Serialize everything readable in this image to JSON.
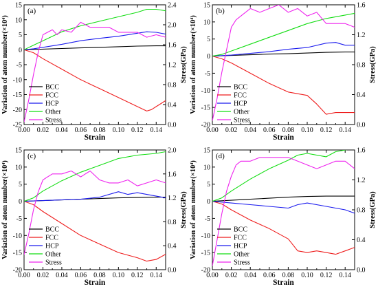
{
  "colors": {
    "BCC": "#000000",
    "FCC": "#ee1c1c",
    "HCP": "#1a1aee",
    "Other": "#11dd11",
    "Stress": "#ee22ee"
  },
  "chart_data": [
    {
      "panel": "(a)",
      "type": "line",
      "xlabel": "Strain",
      "ylabel": "Variation of atom number(×10⁴)",
      "y2label": "Stress(GPa)",
      "xlim": [
        0,
        0.15
      ],
      "ylim": [
        -25,
        15
      ],
      "y2lim": [
        0,
        2.4
      ],
      "xticks": [
        "0.00",
        "0.02",
        "0.04",
        "0.06",
        "0.08",
        "0.10",
        "0.12",
        "0.14"
      ],
      "yticks": [
        "-25",
        "-20",
        "-15",
        "-10",
        "-5",
        "0",
        "5",
        "10",
        "15"
      ],
      "y2ticks": [
        "0.0",
        "0.4",
        "0.8",
        "1.2",
        "1.6",
        "2.0",
        "2.4"
      ],
      "legend": [
        "BCC",
        "FCC",
        "HCP",
        "Other",
        "Stress"
      ],
      "series": [
        {
          "name": "BCC",
          "axis": "left",
          "x": [
            0,
            0.02,
            0.04,
            0.06,
            0.08,
            0.1,
            0.12,
            0.14,
            0.15
          ],
          "y": [
            0,
            0.2,
            0.4,
            0.6,
            0.8,
            1.0,
            1.2,
            1.3,
            1.3
          ]
        },
        {
          "name": "FCC",
          "axis": "left",
          "x": [
            0,
            0.01,
            0.02,
            0.04,
            0.06,
            0.08,
            0.1,
            0.12,
            0.13,
            0.135,
            0.14,
            0.145,
            0.15
          ],
          "y": [
            0,
            -1,
            -3,
            -6.5,
            -10,
            -13,
            -16,
            -19,
            -20.5,
            -20,
            -19,
            -18,
            -17
          ]
        },
        {
          "name": "HCP",
          "axis": "left",
          "x": [
            0,
            0.01,
            0.02,
            0.04,
            0.06,
            0.08,
            0.1,
            0.12,
            0.13,
            0.14,
            0.15
          ],
          "y": [
            0,
            0.3,
            0.8,
            1.8,
            3,
            3.8,
            4.5,
            5.5,
            6,
            5.8,
            5.2
          ]
        },
        {
          "name": "Other",
          "axis": "left",
          "x": [
            0,
            0.01,
            0.02,
            0.04,
            0.06,
            0.08,
            0.1,
            0.12,
            0.13,
            0.14,
            0.15
          ],
          "y": [
            0,
            1.5,
            3,
            6,
            8,
            9.5,
            11,
            12.5,
            13.5,
            13.5,
            13
          ]
        },
        {
          "name": "Stress",
          "axis": "right",
          "x": [
            0,
            0.005,
            0.01,
            0.015,
            0.02,
            0.025,
            0.03,
            0.035,
            0.04,
            0.05,
            0.06,
            0.07,
            0.08,
            0.09,
            0.1,
            0.11,
            0.12,
            0.13,
            0.14,
            0.15
          ],
          "y": [
            0.05,
            0.5,
            1.0,
            1.45,
            1.8,
            1.85,
            1.9,
            1.8,
            1.9,
            1.85,
            2.05,
            1.95,
            1.95,
            1.95,
            1.85,
            1.85,
            1.85,
            1.75,
            1.8,
            1.75
          ]
        }
      ]
    },
    {
      "panel": "(b)",
      "type": "line",
      "xlabel": "Strain",
      "ylabel": "Variation of atom number(×10⁴)",
      "y2label": "Stress(GPa)",
      "xlim": [
        0,
        0.15
      ],
      "ylim": [
        -20,
        15
      ],
      "y2lim": [
        0,
        1.6
      ],
      "xticks": [
        "0.00",
        "0.02",
        "0.04",
        "0.06",
        "0.08",
        "0.10",
        "0.12",
        "0.14"
      ],
      "yticks": [
        "-20",
        "-15",
        "-10",
        "-5",
        "0",
        "5",
        "10",
        "15"
      ],
      "y2ticks": [
        "0.0",
        "0.4",
        "0.8",
        "1.2",
        "1.6"
      ],
      "legend": [
        "BCC",
        "FCC",
        "HCP",
        "Other",
        "Stress"
      ],
      "series": [
        {
          "name": "BCC",
          "axis": "left",
          "x": [
            0,
            0.02,
            0.04,
            0.06,
            0.08,
            0.1,
            0.12,
            0.14,
            0.15
          ],
          "y": [
            0,
            0.2,
            0.4,
            0.6,
            0.7,
            0.9,
            1.1,
            1.2,
            1.2
          ]
        },
        {
          "name": "FCC",
          "axis": "left",
          "x": [
            0,
            0.01,
            0.02,
            0.04,
            0.06,
            0.08,
            0.1,
            0.11,
            0.12,
            0.13,
            0.14,
            0.15
          ],
          "y": [
            0,
            -0.8,
            -2,
            -5,
            -8,
            -10.5,
            -11.5,
            -14,
            -17,
            -16.5,
            -16.5,
            -16.5
          ]
        },
        {
          "name": "HCP",
          "axis": "left",
          "x": [
            0,
            0.02,
            0.04,
            0.06,
            0.08,
            0.1,
            0.12,
            0.13,
            0.14,
            0.15
          ],
          "y": [
            0,
            0.3,
            0.8,
            1.3,
            2,
            2.5,
            3.8,
            4,
            3.2,
            3.2
          ]
        },
        {
          "name": "Other",
          "axis": "left",
          "x": [
            0,
            0.01,
            0.02,
            0.04,
            0.06,
            0.08,
            0.1,
            0.12,
            0.14,
            0.15
          ],
          "y": [
            0,
            0.5,
            1.5,
            3.5,
            5.5,
            7.5,
            9.5,
            11,
            12,
            12.5
          ]
        },
        {
          "name": "Stress",
          "axis": "right",
          "x": [
            0,
            0.005,
            0.01,
            0.015,
            0.02,
            0.025,
            0.03,
            0.04,
            0.05,
            0.06,
            0.07,
            0.08,
            0.09,
            0.1,
            0.11,
            0.12,
            0.13,
            0.14,
            0.15
          ],
          "y": [
            0.05,
            0.35,
            0.7,
            1.0,
            1.3,
            1.4,
            1.45,
            1.55,
            1.5,
            1.55,
            1.6,
            1.5,
            1.55,
            1.45,
            1.5,
            1.35,
            1.35,
            1.35,
            1.3
          ]
        }
      ]
    },
    {
      "panel": "(c)",
      "type": "line",
      "xlabel": "Strain",
      "ylabel": "Variation of atom number(×10⁴)",
      "y2label": "Stress(GPa)",
      "xlim": [
        0,
        0.15
      ],
      "ylim": [
        -20,
        15
      ],
      "y2lim": [
        0,
        2.0
      ],
      "xticks": [
        "0.00",
        "0.02",
        "0.04",
        "0.06",
        "0.08",
        "0.10",
        "0.12",
        "0.14"
      ],
      "yticks": [
        "-20",
        "-15",
        "-10",
        "-5",
        "0",
        "5",
        "10",
        "15"
      ],
      "y2ticks": [
        "0.0",
        "0.4",
        "0.8",
        "1.2",
        "1.6",
        "2.0"
      ],
      "legend": [
        "BCC",
        "FCC",
        "HCP",
        "Other",
        "Stress"
      ],
      "series": [
        {
          "name": "BCC",
          "axis": "left",
          "x": [
            0,
            0.02,
            0.04,
            0.06,
            0.08,
            0.1,
            0.12,
            0.14,
            0.15
          ],
          "y": [
            0,
            0.2,
            0.4,
            0.6,
            0.8,
            1.0,
            1.1,
            1.2,
            1.2
          ]
        },
        {
          "name": "FCC",
          "axis": "left",
          "x": [
            0,
            0.01,
            0.02,
            0.04,
            0.06,
            0.08,
            0.1,
            0.12,
            0.13,
            0.14,
            0.15
          ],
          "y": [
            0,
            -1,
            -3,
            -6.5,
            -10,
            -12.5,
            -15,
            -16.5,
            -17.5,
            -17,
            -15.5
          ]
        },
        {
          "name": "HCP",
          "axis": "left",
          "x": [
            0,
            0.02,
            0.04,
            0.06,
            0.08,
            0.1,
            0.11,
            0.12,
            0.13,
            0.14,
            0.15
          ],
          "y": [
            0,
            0.2,
            0.4,
            0.6,
            1.2,
            2.8,
            2,
            2.5,
            2,
            1.5,
            1
          ]
        },
        {
          "name": "Other",
          "axis": "left",
          "x": [
            0,
            0.01,
            0.02,
            0.04,
            0.06,
            0.08,
            0.1,
            0.12,
            0.14,
            0.15
          ],
          "y": [
            0,
            1,
            3,
            6,
            8.5,
            10.5,
            12.5,
            13.5,
            14,
            14.5
          ]
        },
        {
          "name": "Stress",
          "axis": "right",
          "x": [
            0,
            0.005,
            0.01,
            0.015,
            0.02,
            0.025,
            0.03,
            0.04,
            0.05,
            0.06,
            0.07,
            0.08,
            0.09,
            0.1,
            0.11,
            0.12,
            0.13,
            0.14,
            0.15
          ],
          "y": [
            0.25,
            0.6,
            1.0,
            1.3,
            1.5,
            1.55,
            1.6,
            1.6,
            1.65,
            1.55,
            1.65,
            1.5,
            1.45,
            1.45,
            1.5,
            1.4,
            1.45,
            1.5,
            1.45
          ]
        }
      ]
    },
    {
      "panel": "(d)",
      "type": "line",
      "xlabel": "Strain",
      "ylabel": "Variation of atom number(×10⁴)",
      "y2label": "Stress(GPa)",
      "xlim": [
        0,
        0.15
      ],
      "ylim": [
        -20,
        15
      ],
      "y2lim": [
        0,
        1.6
      ],
      "xticks": [
        "0.00",
        "0.02",
        "0.04",
        "0.06",
        "0.08",
        "0.10",
        "0.12",
        "0.14"
      ],
      "yticks": [
        "-20",
        "-15",
        "-10",
        "-5",
        "0",
        "5",
        "10",
        "15"
      ],
      "y2ticks": [
        "0.0",
        "0.4",
        "0.8",
        "1.2",
        "1.6"
      ],
      "legend": [
        "BCC",
        "FCC",
        "HCP",
        "Other",
        "Stress"
      ],
      "series": [
        {
          "name": "BCC",
          "axis": "left",
          "x": [
            0,
            0.02,
            0.04,
            0.06,
            0.08,
            0.1,
            0.12,
            0.14,
            0.15
          ],
          "y": [
            0,
            0.3,
            0.6,
            0.9,
            1.2,
            1.4,
            1.5,
            1.5,
            1.5
          ]
        },
        {
          "name": "FCC",
          "axis": "left",
          "x": [
            0,
            0.01,
            0.02,
            0.04,
            0.06,
            0.08,
            0.09,
            0.1,
            0.11,
            0.12,
            0.13,
            0.14,
            0.15
          ],
          "y": [
            0,
            -0.8,
            -2.5,
            -5.5,
            -8,
            -11,
            -14.5,
            -15,
            -14.5,
            -15,
            -15.5,
            -14.5,
            -13.5
          ]
        },
        {
          "name": "HCP",
          "axis": "left",
          "x": [
            0,
            0.02,
            0.04,
            0.06,
            0.08,
            0.09,
            0.1,
            0.12,
            0.14,
            0.15
          ],
          "y": [
            0,
            -0.5,
            -1,
            -1.5,
            -2,
            -1,
            -0.5,
            -1.5,
            -2.5,
            -3.5
          ]
        },
        {
          "name": "Other",
          "axis": "left",
          "x": [
            0,
            0.01,
            0.02,
            0.04,
            0.06,
            0.08,
            0.09,
            0.1,
            0.12,
            0.13,
            0.14,
            0.15
          ],
          "y": [
            0,
            1,
            3,
            6.5,
            9.5,
            12,
            13.5,
            14,
            13,
            14.5,
            15,
            15.5
          ]
        },
        {
          "name": "Stress",
          "axis": "right",
          "x": [
            0,
            0.005,
            0.01,
            0.015,
            0.02,
            0.025,
            0.03,
            0.04,
            0.05,
            0.06,
            0.07,
            0.08,
            0.09,
            0.1,
            0.11,
            0.12,
            0.13,
            0.14,
            0.15
          ],
          "y": [
            0.05,
            0.4,
            0.75,
            1.05,
            1.25,
            1.4,
            1.45,
            1.45,
            1.5,
            1.5,
            1.5,
            1.5,
            1.45,
            1.4,
            1.35,
            1.4,
            1.45,
            1.45,
            1.35
          ]
        }
      ]
    }
  ]
}
